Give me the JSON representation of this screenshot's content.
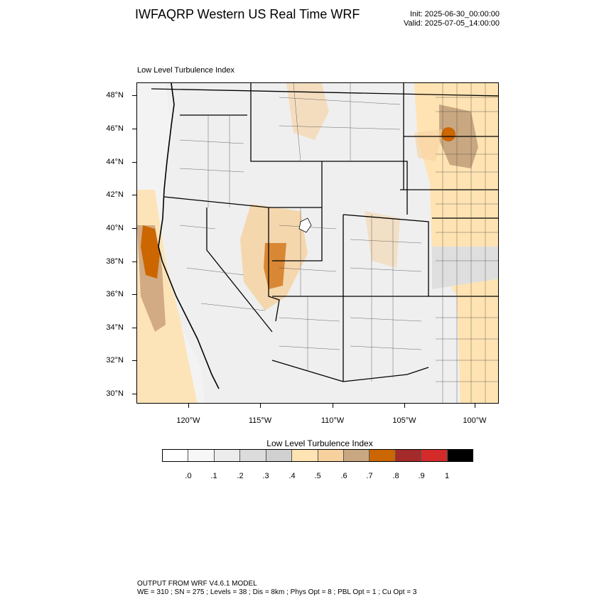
{
  "title": "IWFAQRP Western US Real Time WRF",
  "init_line": "Init: 2025-06-30_00:00:00",
  "valid_line": "Valid: 2025-07-05_14:00:00",
  "subtitle": "Low Level Turbulence Index",
  "lat_labels": [
    "48°N",
    "46°N",
    "44°N",
    "42°N",
    "40°N",
    "38°N",
    "36°N",
    "34°N",
    "32°N",
    "30°N"
  ],
  "lon_labels": [
    "120°W",
    "115°W",
    "110°W",
    "105°W",
    "100°W"
  ],
  "colorbar": {
    "title": "Low Level Turbulence Index",
    "labels": [
      ".0",
      ".1",
      ".2",
      ".3",
      ".4",
      ".5",
      ".6",
      ".7",
      ".8",
      ".9",
      "1"
    ],
    "colors": [
      "#ffffff",
      "#f7f7f7",
      "#ececec",
      "#dcdcdc",
      "#d0d0d0",
      "#ffe3b3",
      "#f6d19e",
      "#c9a881",
      "#cc6600",
      "#a52a2a",
      "#d42a2a",
      "#000000"
    ]
  },
  "footer": {
    "line1": "OUTPUT FROM WRF V4.6.1 MODEL",
    "line2": "WE = 310 ; SN = 275 ; Levels = 38 ; Dis = 8km ; Phys Opt = 8 ; PBL Opt = 1 ; Cu Opt = 3"
  }
}
